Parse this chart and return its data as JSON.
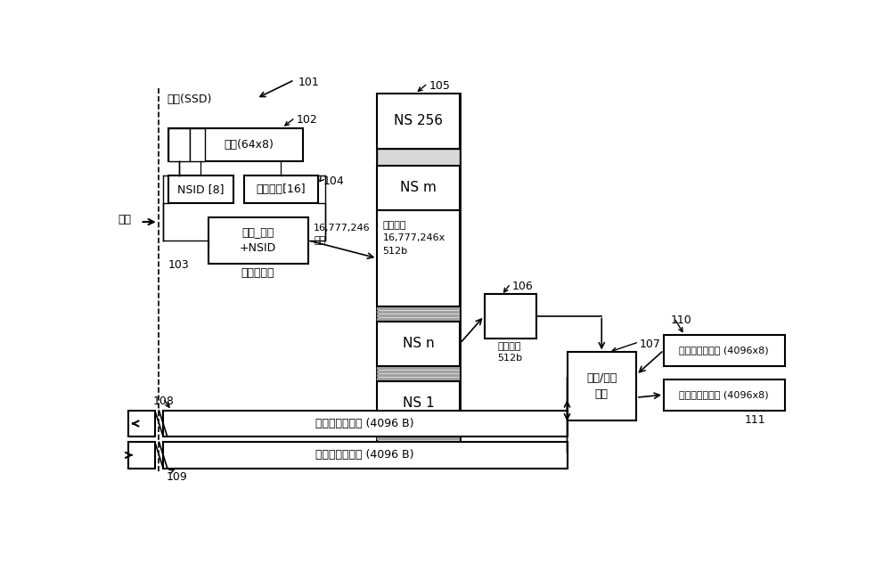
{
  "bg_color": "#ffffff",
  "lc": "#000000",
  "fs": 9,
  "fs_s": 8,
  "fs_l": 11,
  "text": {
    "host": "主机",
    "device_ssd": "设备(SSD)",
    "command": "命令(64x8)",
    "nsid8": "NSID [8]",
    "key_tag16": "密钓标签[16]",
    "key_tag_nsid": "密钓_标签\n+NSID",
    "source_index": "（源索引）",
    "entries": "16,777,246\n条目",
    "ns256": "NS 256",
    "nsm": "NS m",
    "key_index": "密钓索引\n16,777,246x\n512b",
    "nsn": "NS n",
    "ns1": "NS 1",
    "enc_key": "加密密钓\n512b",
    "dec_enc": "解密/加密\n引擎",
    "read_dec": "读取解密的数据 (4096 B)",
    "write_dec": "写入解密的数据 (4096 B)",
    "read_enc": "读取加密的数据 (4096x8)",
    "write_enc": "写入加密的数据 (4096x8)"
  },
  "labels": [
    "101",
    "102",
    "103",
    "104",
    "105",
    "106",
    "107",
    "108",
    "109",
    "110",
    "111"
  ]
}
